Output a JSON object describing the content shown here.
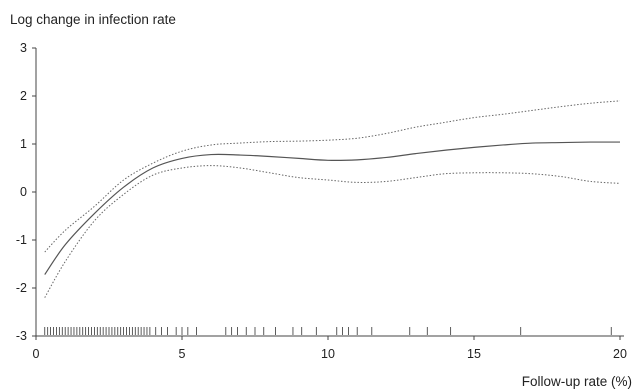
{
  "chart_data": {
    "type": "line",
    "title": "",
    "ylabel": "Log change in infection rate",
    "xlabel": "Follow-up rate (%)",
    "xlim": [
      0,
      20
    ],
    "ylim": [
      -3,
      3
    ],
    "xticks": [
      0,
      5,
      10,
      15,
      20
    ],
    "yticks": [
      3,
      2,
      1,
      0,
      -1,
      -2,
      -3
    ],
    "grid": false,
    "legend": "none",
    "series": [
      {
        "style": "solid",
        "x": [
          0.3,
          1,
          2,
          3,
          4,
          5,
          6,
          7,
          8,
          9,
          10,
          11,
          12,
          13,
          14,
          15,
          16,
          17,
          18,
          19,
          20
        ],
        "y": [
          -1.72,
          -1.1,
          -0.45,
          0.1,
          0.5,
          0.7,
          0.78,
          0.77,
          0.74,
          0.7,
          0.66,
          0.67,
          0.72,
          0.8,
          0.87,
          0.93,
          0.98,
          1.02,
          1.03,
          1.04,
          1.04
        ]
      },
      {
        "style": "dotted",
        "x": [
          0.3,
          1,
          2,
          3,
          4,
          5,
          6,
          7,
          8,
          9,
          10,
          11,
          12,
          13,
          14,
          15,
          16,
          17,
          18,
          19,
          20
        ],
        "y": [
          -1.25,
          -0.8,
          -0.3,
          0.25,
          0.6,
          0.85,
          0.98,
          1.02,
          1.05,
          1.06,
          1.08,
          1.12,
          1.22,
          1.35,
          1.45,
          1.55,
          1.62,
          1.7,
          1.78,
          1.85,
          1.9
        ]
      },
      {
        "style": "dotted",
        "x": [
          0.3,
          1,
          2,
          3,
          4,
          5,
          6,
          7,
          8,
          9,
          10,
          11,
          12,
          13,
          14,
          15,
          16,
          17,
          18,
          19,
          20
        ],
        "y": [
          -2.2,
          -1.45,
          -0.6,
          -0.05,
          0.35,
          0.5,
          0.55,
          0.5,
          0.4,
          0.3,
          0.25,
          0.2,
          0.22,
          0.3,
          0.38,
          0.4,
          0.4,
          0.38,
          0.32,
          0.22,
          0.18
        ]
      }
    ],
    "rug": [
      0.3,
      0.4,
      0.5,
      0.6,
      0.7,
      0.8,
      0.9,
      1.0,
      1.1,
      1.2,
      1.3,
      1.4,
      1.5,
      1.6,
      1.7,
      1.8,
      1.9,
      2.0,
      2.1,
      2.2,
      2.3,
      2.4,
      2.5,
      2.6,
      2.7,
      2.8,
      2.9,
      3.0,
      3.1,
      3.2,
      3.3,
      3.4,
      3.5,
      3.6,
      3.7,
      3.8,
      3.9,
      4.1,
      4.3,
      4.5,
      4.8,
      5.0,
      5.2,
      5.5,
      6.5,
      6.7,
      6.9,
      7.2,
      7.5,
      7.8,
      8.2,
      8.8,
      9.1,
      9.6,
      10.3,
      10.5,
      10.7,
      11.0,
      11.5,
      12.8,
      13.4,
      14.2,
      16.6,
      19.7
    ]
  }
}
